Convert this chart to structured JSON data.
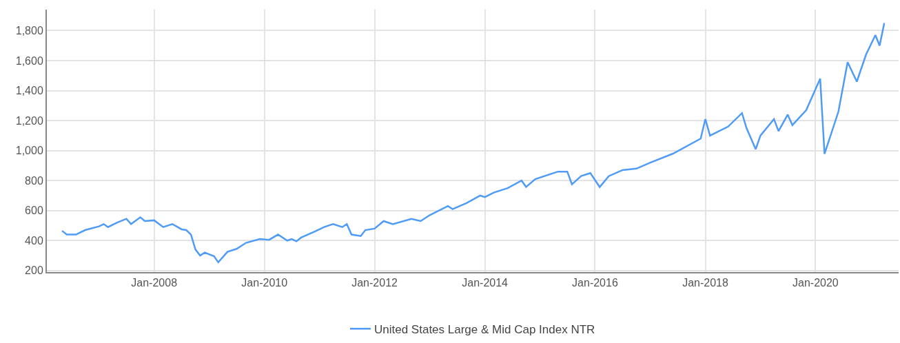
{
  "chart_data": {
    "type": "line",
    "x": [
      "2006-05",
      "2006-06",
      "2006-08",
      "2006-10",
      "2007-01",
      "2007-02",
      "2007-03",
      "2007-05",
      "2007-07",
      "2007-08",
      "2007-10",
      "2007-11",
      "2008-01",
      "2008-03",
      "2008-05",
      "2008-07",
      "2008-08",
      "2008-09",
      "2008-10",
      "2008-11",
      "2008-12",
      "2009-02",
      "2009-03",
      "2009-05",
      "2009-07",
      "2009-09",
      "2009-12",
      "2010-02",
      "2010-04",
      "2010-06",
      "2010-07",
      "2010-08",
      "2010-09",
      "2010-12",
      "2011-02",
      "2011-04",
      "2011-06",
      "2011-07",
      "2011-08",
      "2011-10",
      "2011-11",
      "2012-01",
      "2012-03",
      "2012-05",
      "2012-09",
      "2012-11",
      "2013-01",
      "2013-05",
      "2013-06",
      "2013-09",
      "2013-12",
      "2014-01",
      "2014-03",
      "2014-06",
      "2014-09",
      "2014-10",
      "2014-12",
      "2015-05",
      "2015-07",
      "2015-08",
      "2015-10",
      "2015-12",
      "2016-02",
      "2016-04",
      "2016-07",
      "2016-10",
      "2017-01",
      "2017-06",
      "2017-12",
      "2018-01",
      "2018-02",
      "2018-06",
      "2018-09",
      "2018-10",
      "2018-12",
      "2019-01",
      "2019-04",
      "2019-05",
      "2019-07",
      "2019-08",
      "2019-11",
      "2020-02",
      "2020-03",
      "2020-06",
      "2020-08",
      "2020-10",
      "2020-12",
      "2021-02",
      "2021-03",
      "2021-04"
    ],
    "series": [
      {
        "name": "United States Large & Mid Cap Index NTR",
        "color": "#4f9bf5",
        "values": [
          465,
          440,
          440,
          470,
          495,
          510,
          490,
          520,
          545,
          510,
          555,
          530,
          535,
          490,
          510,
          475,
          470,
          440,
          340,
          300,
          320,
          295,
          255,
          325,
          345,
          385,
          410,
          405,
          440,
          400,
          410,
          395,
          420,
          460,
          490,
          510,
          490,
          510,
          440,
          430,
          470,
          480,
          530,
          510,
          545,
          530,
          570,
          630,
          610,
          650,
          700,
          690,
          720,
          750,
          800,
          758,
          810,
          860,
          860,
          775,
          830,
          850,
          757,
          830,
          870,
          880,
          920,
          980,
          1080,
          1210,
          1100,
          1160,
          1250,
          1150,
          1009,
          1100,
          1210,
          1130,
          1240,
          1170,
          1270,
          1480,
          978,
          1260,
          1590,
          1460,
          1640,
          1770,
          1700,
          1850
        ]
      }
    ],
    "xlim": [
      "2006-01-20",
      "2021-07-05"
    ],
    "xticks": [
      {
        "value": "2008-01-01",
        "label": "Jan-2008"
      },
      {
        "value": "2010-01-01",
        "label": "Jan-2010"
      },
      {
        "value": "2012-01-01",
        "label": "Jan-2012"
      },
      {
        "value": "2014-01-01",
        "label": "Jan-2014"
      },
      {
        "value": "2016-01-01",
        "label": "Jan-2016"
      },
      {
        "value": "2018-01-01",
        "label": "Jan-2018"
      },
      {
        "value": "2020-01-01",
        "label": "Jan-2020"
      }
    ],
    "ylim": [
      190,
      1940
    ],
    "yticks": [
      200,
      400,
      600,
      800,
      {
        "value": 1000,
        "label": "1,000"
      },
      {
        "value": 1200,
        "label": "1,200"
      },
      {
        "value": 1400,
        "label": "1,400"
      },
      {
        "value": 1600,
        "label": "1,600"
      },
      {
        "value": 1800,
        "label": "1,800"
      }
    ],
    "grid": true,
    "legend": "bottom",
    "marker": "none",
    "line_style": "solid"
  }
}
